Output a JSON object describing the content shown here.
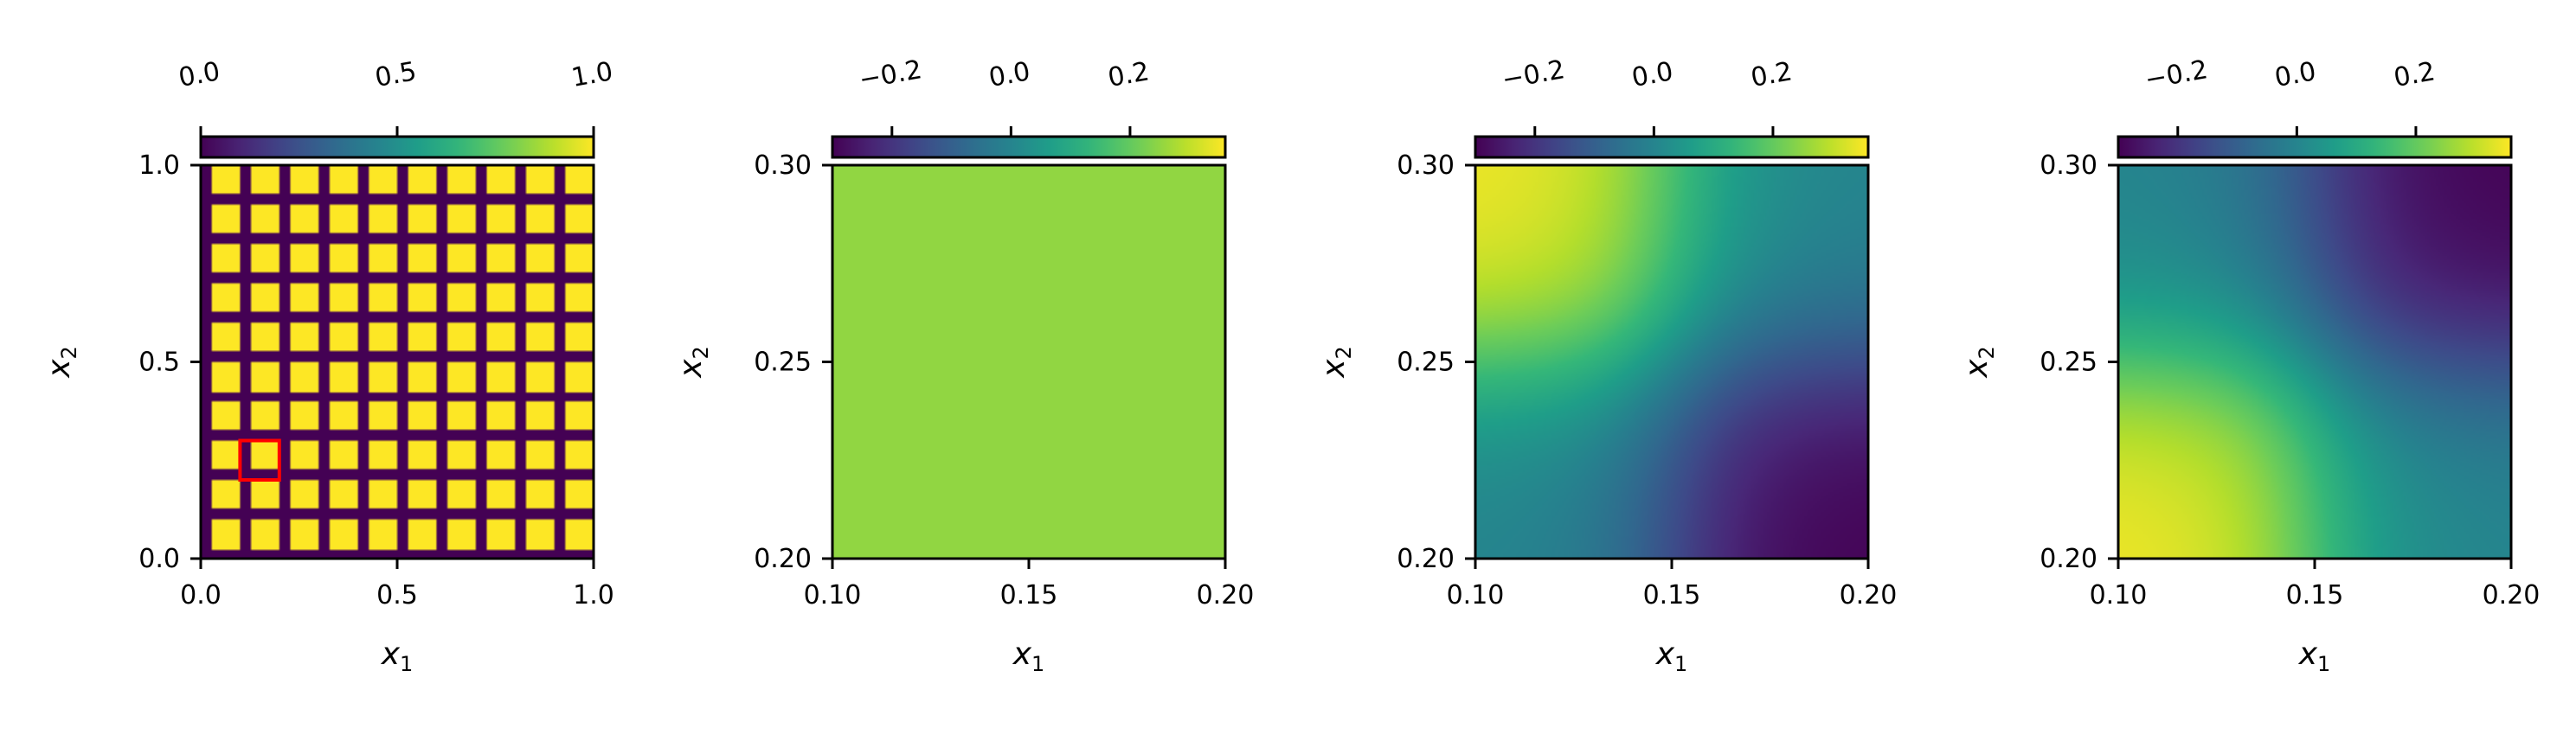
{
  "colormap": "viridis",
  "colors": {
    "highlight_box": "#ff0000",
    "axis": "#000000"
  },
  "chart_data": [
    {
      "type": "heatmap",
      "description_id": "grid",
      "xlabel": "x_1",
      "ylabel": "x_2",
      "xlim": [
        0.0,
        1.0
      ],
      "ylim": [
        0.0,
        1.0
      ],
      "xticks": [
        "0.0",
        "0.5",
        "1.0"
      ],
      "yticks": [
        "0.0",
        "0.5",
        "1.0"
      ],
      "colorbar": {
        "vmin": 0.0,
        "vmax": 1.0,
        "ticks": [
          "0.0",
          "0.5",
          "1.0"
        ],
        "tick_values": [
          0.0,
          0.5,
          1.0
        ]
      },
      "pattern": {
        "kind": "periodic-grid",
        "period": 0.1,
        "line_width": 0.025,
        "line_value": 0.0,
        "cell_value": 1.0
      },
      "highlight_box": {
        "x": [
          0.1,
          0.2
        ],
        "y": [
          0.2,
          0.3
        ]
      }
    },
    {
      "type": "heatmap",
      "description_id": "zoom-constant",
      "xlabel": "x_1",
      "ylabel": "x_2",
      "xlim": [
        0.1,
        0.2
      ],
      "ylim": [
        0.2,
        0.3
      ],
      "xticks": [
        "0.10",
        "0.15",
        "0.20"
      ],
      "yticks": [
        "0.20",
        "0.25",
        "0.30"
      ],
      "colorbar": {
        "vmin": -0.3,
        "vmax": 0.36,
        "ticks": [
          "−0.2",
          "0.0",
          "0.2"
        ],
        "tick_values": [
          -0.2,
          0.0,
          0.2
        ]
      },
      "pattern": {
        "kind": "constant",
        "value": 0.25
      }
    },
    {
      "type": "heatmap",
      "description_id": "zoom-quadrant-a",
      "xlabel": "x_1",
      "ylabel": "x_2",
      "xlim": [
        0.1,
        0.2
      ],
      "ylim": [
        0.2,
        0.3
      ],
      "xticks": [
        "0.10",
        "0.15",
        "0.20"
      ],
      "yticks": [
        "0.20",
        "0.25",
        "0.30"
      ],
      "colorbar": {
        "vmin": -0.3,
        "vmax": 0.36,
        "ticks": [
          "−0.2",
          "0.0",
          "0.2"
        ],
        "tick_values": [
          -0.2,
          0.0,
          0.2
        ]
      },
      "pattern": {
        "kind": "quadrant",
        "center": [
          0.15,
          0.25
        ],
        "width": 0.012,
        "base": 0.0,
        "upper_left": 0.35,
        "lower_right": -0.3
      }
    },
    {
      "type": "heatmap",
      "description_id": "zoom-quadrant-b",
      "xlabel": "x_1",
      "ylabel": "x_2",
      "xlim": [
        0.1,
        0.2
      ],
      "ylim": [
        0.2,
        0.3
      ],
      "xticks": [
        "0.10",
        "0.15",
        "0.20"
      ],
      "yticks": [
        "0.20",
        "0.25",
        "0.30"
      ],
      "colorbar": {
        "vmin": -0.3,
        "vmax": 0.36,
        "ticks": [
          "−0.2",
          "0.0",
          "0.2"
        ],
        "tick_values": [
          -0.2,
          0.0,
          0.2
        ]
      },
      "pattern": {
        "kind": "quadrant",
        "center": [
          0.15,
          0.25
        ],
        "width": 0.012,
        "base": 0.0,
        "lower_left": 0.35,
        "upper_right": -0.3
      }
    }
  ]
}
